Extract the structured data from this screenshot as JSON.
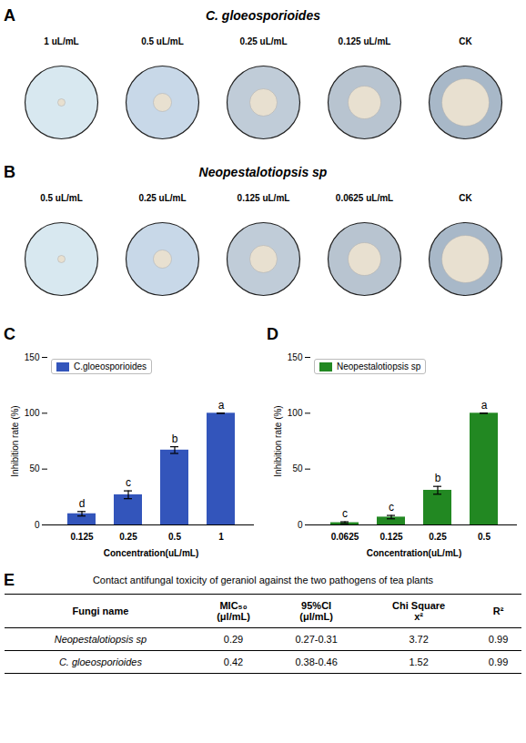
{
  "chart_data": [
    {
      "type": "dishes",
      "title": "C. gloeosporioides",
      "categories": [
        "1 uL/mL",
        "0.5 uL/mL",
        "0.25 uL/mL",
        "0.125 uL/mL",
        "CK"
      ],
      "annotations": [
        "A"
      ]
    },
    {
      "type": "dishes",
      "title": "Neopestalotiopsis sp",
      "categories": [
        "0.5 uL/mL",
        "0.25 uL/mL",
        "0.125 uL/mL",
        "0.0625 uL/mL",
        "CK"
      ],
      "annotations": [
        "B"
      ]
    },
    {
      "type": "bar",
      "categories": [
        "0.125",
        "0.25",
        "0.5",
        "1"
      ],
      "series": [
        {
          "name": "C.gloeosporioides",
          "color": "#3355bb",
          "values": [
            10.0,
            27.0,
            67.0,
            100.0
          ],
          "errors": [
            2.0,
            3.5,
            3.0,
            0.0
          ],
          "letters": [
            "d",
            "c",
            "b",
            "a"
          ]
        }
      ],
      "xlabel": "Concentration(uL/mL)",
      "ylabel": "Inhibition rate (%)",
      "ylim": [
        0,
        150
      ],
      "yticks": [
        0,
        50,
        100,
        150
      ],
      "legend": "upper left",
      "annotations": [
        "C"
      ]
    },
    {
      "type": "bar",
      "categories": [
        "0.0625",
        "0.125",
        "0.25",
        "0.5"
      ],
      "series": [
        {
          "name": "Neopestalotiopsis sp",
          "color": "#228822",
          "values": [
            2.0,
            7.0,
            31.0,
            100.0
          ],
          "errors": [
            0.8,
            1.5,
            3.5,
            0.0
          ],
          "letters": [
            "c",
            "c",
            "b",
            "a"
          ]
        }
      ],
      "xlabel": "Concentration(uL/mL)",
      "ylabel": "Inhibition rate (%)",
      "ylim": [
        0,
        150
      ],
      "yticks": [
        0,
        50,
        100,
        150
      ],
      "legend": "upper left",
      "annotations": [
        "D"
      ]
    },
    {
      "type": "table",
      "title": "Contact antifungal toxicity of geraniol against the two pathogens of tea plants",
      "columns": [
        "Fungi name",
        "MIC₅₀\n(μl/mL)",
        "95%CI\n(μl/mL)",
        "Chi Square\nx²",
        "R²"
      ],
      "rows": [
        [
          "Neopestalotiopsis sp",
          "0.29",
          "0.27-0.31",
          "3.72",
          "0.99"
        ],
        [
          "C. gloeosporioides",
          "0.42",
          "0.38-0.46",
          "1.52",
          "0.99"
        ]
      ],
      "annotations": [
        "E"
      ]
    }
  ]
}
